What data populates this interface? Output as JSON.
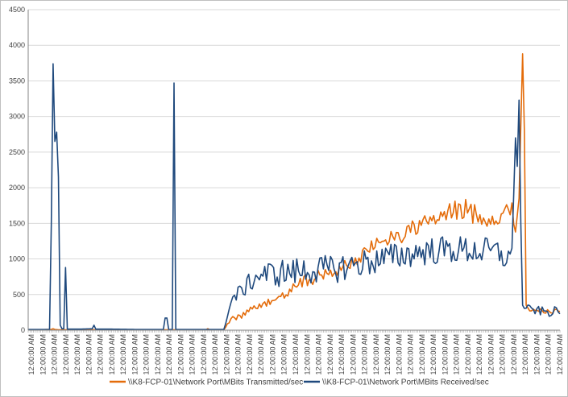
{
  "chart_data": {
    "type": "line",
    "title": "",
    "xlabel": "",
    "ylabel": "",
    "ylim": [
      0,
      4500
    ],
    "yticks": [
      0,
      500,
      1000,
      1500,
      2000,
      2500,
      3000,
      3500,
      4000,
      4500
    ],
    "grid": "horizontal",
    "legend_position": "bottom",
    "x_tick_label": "12:00:00 AM",
    "x_tick_count": 47,
    "n_points": 300,
    "series": [
      {
        "name": "\\\\K8-FCP-01\\Network Port\\MBits Transmitted/sec",
        "color": "#e46c0a",
        "keypoints": [
          [
            0,
            5
          ],
          [
            13,
            10
          ],
          [
            14,
            20
          ],
          [
            15,
            10
          ],
          [
            17,
            5
          ],
          [
            100,
            5
          ],
          [
            101,
            20
          ],
          [
            102,
            5
          ],
          [
            110,
            5
          ],
          [
            112,
            80
          ],
          [
            115,
            160
          ],
          [
            120,
            200
          ],
          [
            125,
            280
          ],
          [
            130,
            330
          ],
          [
            135,
            380
          ],
          [
            140,
            450
          ],
          [
            145,
            520
          ],
          [
            150,
            650
          ],
          [
            155,
            700
          ],
          [
            160,
            720
          ],
          [
            165,
            770
          ],
          [
            170,
            800
          ],
          [
            175,
            860
          ],
          [
            180,
            920
          ],
          [
            185,
            1000
          ],
          [
            190,
            1080
          ],
          [
            195,
            1200
          ],
          [
            200,
            1300
          ],
          [
            205,
            1300
          ],
          [
            210,
            1340
          ],
          [
            215,
            1400
          ],
          [
            220,
            1480
          ],
          [
            225,
            1500
          ],
          [
            230,
            1560
          ],
          [
            235,
            1610
          ],
          [
            240,
            1670
          ],
          [
            245,
            1700
          ],
          [
            250,
            1650
          ],
          [
            255,
            1600
          ],
          [
            260,
            1550
          ],
          [
            265,
            1620
          ],
          [
            270,
            1640
          ],
          [
            272,
            1700
          ],
          [
            274,
            1400
          ],
          [
            276,
            1850
          ],
          [
            278,
            3880
          ],
          [
            279,
            2800
          ],
          [
            280,
            350
          ],
          [
            282,
            250
          ],
          [
            285,
            280
          ],
          [
            290,
            270
          ],
          [
            295,
            260
          ],
          [
            299,
            290
          ]
        ],
        "amplitude": [
          [
            0,
            0
          ],
          [
            110,
            0
          ],
          [
            114,
            30
          ],
          [
            140,
            60
          ],
          [
            150,
            90
          ],
          [
            180,
            90
          ],
          [
            200,
            120
          ],
          [
            240,
            150
          ],
          [
            270,
            150
          ],
          [
            276,
            0
          ],
          [
            280,
            0
          ],
          [
            282,
            30
          ],
          [
            299,
            30
          ]
        ]
      },
      {
        "name": "\\\\K8-FCP-01\\Network Port\\MBits Received/sec",
        "color": "#1f497d",
        "keypoints": [
          [
            0,
            10
          ],
          [
            12,
            10
          ],
          [
            13,
            1500
          ],
          [
            14,
            3740
          ],
          [
            15,
            2650
          ],
          [
            15.5,
            2800
          ],
          [
            16,
            2780
          ],
          [
            16.5,
            2600
          ],
          [
            17,
            2150
          ],
          [
            17.5,
            100
          ],
          [
            18,
            70
          ],
          [
            19,
            20
          ],
          [
            20,
            20
          ],
          [
            21,
            880
          ],
          [
            21.5,
            15
          ],
          [
            24,
            15
          ],
          [
            30,
            15
          ],
          [
            36,
            20
          ],
          [
            37,
            70
          ],
          [
            38,
            15
          ],
          [
            45,
            15
          ],
          [
            60,
            10
          ],
          [
            70,
            10
          ],
          [
            76,
            10
          ],
          [
            77,
            170
          ],
          [
            78,
            170
          ],
          [
            79,
            10
          ],
          [
            81,
            10
          ],
          [
            82,
            3470
          ],
          [
            83,
            10
          ],
          [
            110,
            10
          ],
          [
            112,
            200
          ],
          [
            115,
            450
          ],
          [
            120,
            550
          ],
          [
            125,
            680
          ],
          [
            130,
            780
          ],
          [
            140,
            800
          ],
          [
            150,
            820
          ],
          [
            160,
            850
          ],
          [
            170,
            850
          ],
          [
            180,
            900
          ],
          [
            190,
            950
          ],
          [
            200,
            1000
          ],
          [
            210,
            1050
          ],
          [
            220,
            1100
          ],
          [
            230,
            1120
          ],
          [
            240,
            1130
          ],
          [
            250,
            1120
          ],
          [
            260,
            1100
          ],
          [
            265,
            1080
          ],
          [
            270,
            1000
          ],
          [
            272,
            1150
          ],
          [
            273,
            1900
          ],
          [
            274,
            2700
          ],
          [
            275,
            2300
          ],
          [
            276,
            3230
          ],
          [
            277,
            1500
          ],
          [
            278,
            350
          ],
          [
            280,
            300
          ],
          [
            285,
            280
          ],
          [
            290,
            260
          ],
          [
            295,
            250
          ],
          [
            299,
            290
          ]
        ],
        "amplitude": [
          [
            0,
            0
          ],
          [
            110,
            0
          ],
          [
            114,
            90
          ],
          [
            140,
            200
          ],
          [
            180,
            200
          ],
          [
            270,
            200
          ],
          [
            272,
            0
          ],
          [
            278,
            0
          ],
          [
            280,
            60
          ],
          [
            299,
            70
          ]
        ]
      }
    ]
  }
}
